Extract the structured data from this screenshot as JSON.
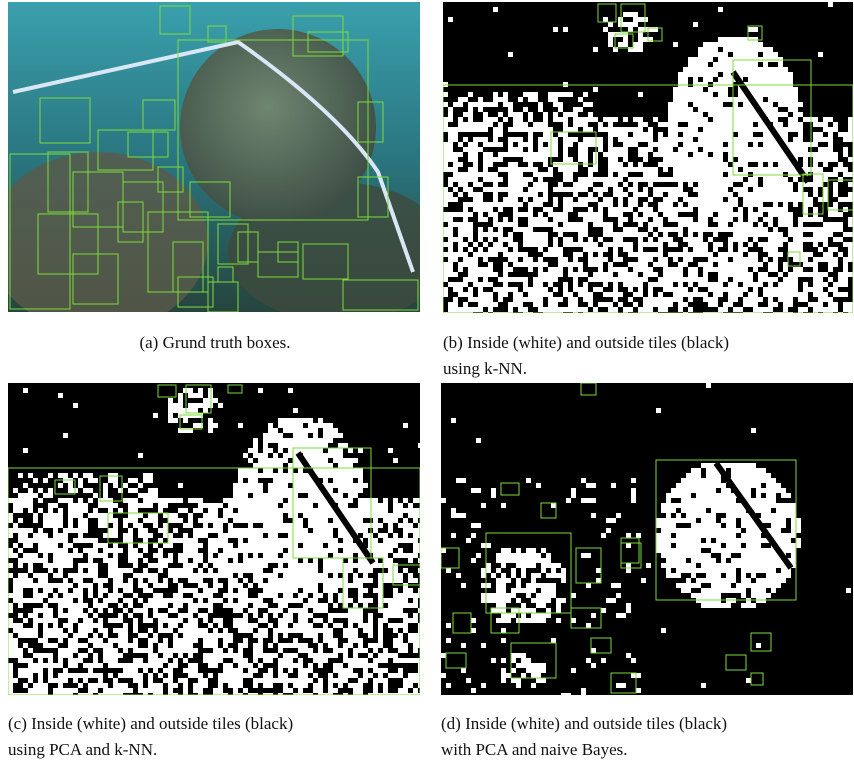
{
  "figures": [
    {
      "label": "(a)",
      "lines": [
        "Grund truth boxes."
      ]
    },
    {
      "label": "(b)",
      "lines": [
        "Inside (white) and outside tiles (black)",
        "using k-NN."
      ]
    },
    {
      "label": "(c)",
      "lines": [
        "Inside (white) and outside tiles (black)",
        "using PCA and k-NN."
      ]
    },
    {
      "label": "(d)",
      "lines": [
        "Inside (white) and outside tiles (black)",
        "with PCA and naive Bayes."
      ]
    }
  ]
}
